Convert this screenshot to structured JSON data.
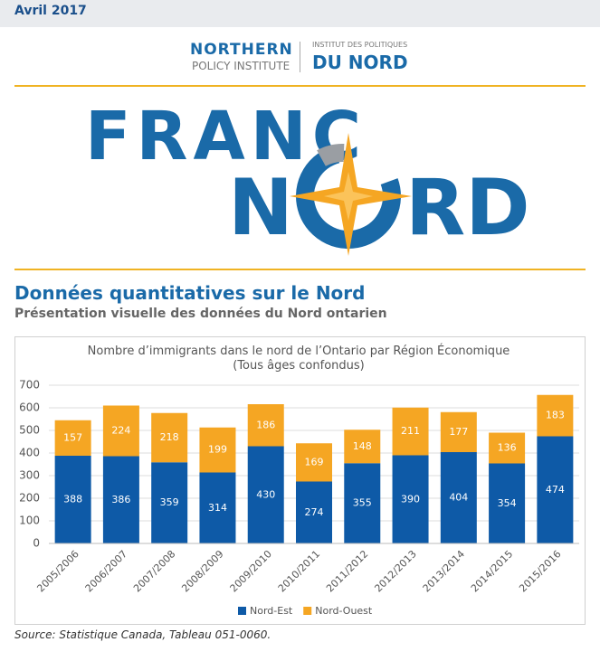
{
  "header": {
    "date": "Avril 2017",
    "logo_en_1": "NORTHERN",
    "logo_en_2": "POLICY INSTITUTE",
    "logo_fr_1": "INSTITUT DES POLITIQUES",
    "logo_fr_2": "DU NORD"
  },
  "banner": {
    "line1": "FRANC",
    "line2_left": "N",
    "line2_right": "RD"
  },
  "section": {
    "title": "Données quantitatives sur le Nord",
    "subtitle": "Présentation visuelle des données du Nord ontarien"
  },
  "chart_data": {
    "type": "stacked_bar",
    "title": "Nombre d’immigrants dans le nord de l’Ontario par Région Économique  (Tous âges confondus)",
    "categories": [
      "2005/2006",
      "2006/2007",
      "2007/2008",
      "2008/2009",
      "2009/2010",
      "2010/2011",
      "2011/2012",
      "2012/2013",
      "2013/2014",
      "2014/2015",
      "2015/2016"
    ],
    "series": [
      {
        "name": "Nord-Est",
        "color": "#0e5aa7",
        "values": [
          388,
          386,
          359,
          314,
          430,
          274,
          355,
          390,
          404,
          354,
          474
        ]
      },
      {
        "name": "Nord-Ouest",
        "color": "#f5a623",
        "values": [
          157,
          224,
          218,
          199,
          186,
          169,
          148,
          211,
          177,
          136,
          183
        ]
      }
    ],
    "ylim": [
      0,
      700
    ],
    "yticks": [
      0,
      100,
      200,
      300,
      400,
      500,
      600,
      700
    ],
    "grid": true,
    "legend": "bottom"
  },
  "footer": {
    "source": "Source: Statistique Canada, Tableau 051-0060."
  }
}
